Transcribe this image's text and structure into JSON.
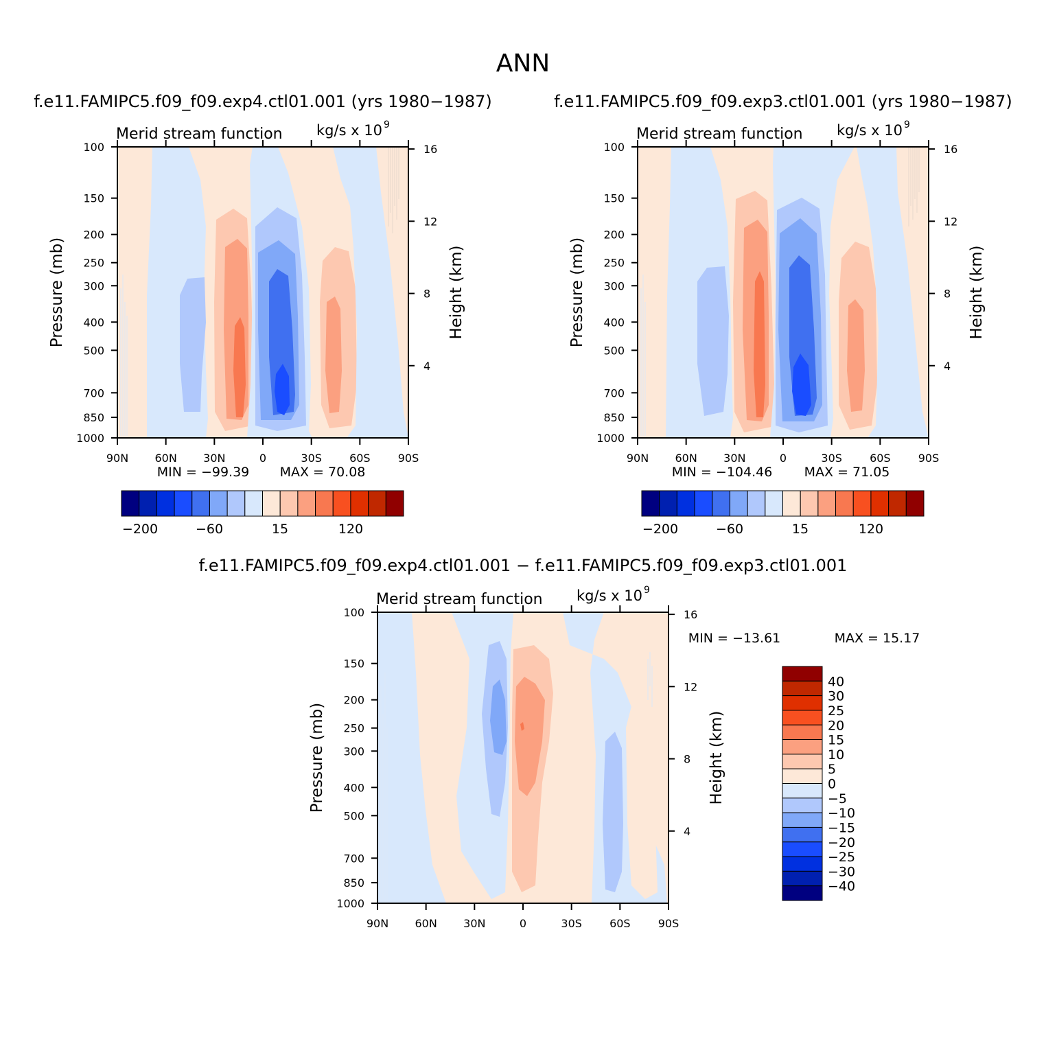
{
  "figure_title": "ANN",
  "panels": [
    {
      "case_title": "f.e11.FAMIPC5.f09_f09.exp4.ctl01.001 (yrs 1980−1987)",
      "variable": "Merid stream function",
      "units_base": "kg/s x 10",
      "units_exp": "9",
      "min_label": "MIN = −99.39",
      "max_label": "MAX = 70.08"
    },
    {
      "case_title": "f.e11.FAMIPC5.f09_f09.exp3.ctl01.001 (yrs 1980−1987)",
      "variable": "Merid stream function",
      "units_base": "kg/s x 10",
      "units_exp": "9",
      "min_label": "MIN = −104.46",
      "max_label": "MAX = 71.05"
    },
    {
      "case_title": "f.e11.FAMIPC5.f09_f09.exp4.ctl01.001 − f.e11.FAMIPC5.f09_f09.exp3.ctl01.001",
      "variable": "Merid stream function",
      "units_base": "kg/s x 10",
      "units_exp": "9",
      "min_label": "MIN = −13.61",
      "max_label": "MAX = 15.17"
    }
  ],
  "axes": {
    "ylabel": "Pressure (mb)",
    "ylabel_right": "Height (km)",
    "pressure_ticks": [
      "100",
      "150",
      "200",
      "250",
      "300",
      "400",
      "500",
      "700",
      "850",
      "1000"
    ],
    "height_ticks": [
      "16",
      "12",
      "8",
      "4"
    ],
    "lat_ticks": [
      "90N",
      "60N",
      "30N",
      "0",
      "30S",
      "60S",
      "90S"
    ]
  },
  "colorbar_top": {
    "colors": [
      "#000080",
      "#0020b0",
      "#0030e0",
      "#1a4dff",
      "#4070f0",
      "#80a8f8",
      "#b0c8fc",
      "#d8e8fc",
      "#fde8d8",
      "#fdc8b0",
      "#fba080",
      "#f87850",
      "#f85020",
      "#e03000",
      "#c02800",
      "#900000"
    ],
    "labels": [
      "−200",
      "−60",
      "15",
      "120"
    ]
  },
  "colorbar_diff": {
    "colors": [
      "#900000",
      "#c02800",
      "#e03000",
      "#f85020",
      "#f87850",
      "#fba080",
      "#fdc8b0",
      "#fde8d8",
      "#d8e8fc",
      "#b0c8fc",
      "#80a8f8",
      "#4070f0",
      "#1a4dff",
      "#0030e0",
      "#0020b0",
      "#000080"
    ],
    "labels": [
      "40",
      "30",
      "25",
      "20",
      "15",
      "10",
      "5",
      "0",
      "−5",
      "−10",
      "−15",
      "−20",
      "−25",
      "−30",
      "−40"
    ]
  },
  "chart_data": [
    {
      "type": "heatmap",
      "title": "Merid stream function",
      "xlabel": "",
      "ylabel": "Pressure (mb)",
      "ylabel_right": "Height (km)",
      "x_ticks": [
        "90N",
        "60N",
        "30N",
        "0",
        "30S",
        "60S",
        "90S"
      ],
      "y_ticks": [
        100,
        150,
        200,
        250,
        300,
        400,
        500,
        700,
        850,
        1000
      ],
      "ylim": [
        1000,
        100
      ],
      "min": -99.39,
      "max": 70.08,
      "extrema_approx": [
        {
          "sign": "positive",
          "lat": "15N",
          "pressure": 600
        },
        {
          "sign": "negative",
          "lat": "12S",
          "pressure": 650
        }
      ]
    },
    {
      "type": "heatmap",
      "title": "Merid stream function",
      "xlabel": "",
      "ylabel": "Pressure (mb)",
      "ylabel_right": "Height (km)",
      "x_ticks": [
        "90N",
        "60N",
        "30N",
        "0",
        "30S",
        "60S",
        "90S"
      ],
      "y_ticks": [
        100,
        150,
        200,
        250,
        300,
        400,
        500,
        700,
        850,
        1000
      ],
      "ylim": [
        1000,
        100
      ],
      "min": -104.46,
      "max": 71.05
    },
    {
      "type": "heatmap",
      "title": "Merid stream function",
      "xlabel": "",
      "ylabel": "Pressure (mb)",
      "ylabel_right": "Height (km)",
      "x_ticks": [
        "90N",
        "60N",
        "30N",
        "0",
        "30S",
        "60S",
        "90S"
      ],
      "y_ticks": [
        100,
        150,
        200,
        250,
        300,
        400,
        500,
        700,
        850,
        1000
      ],
      "ylim": [
        1000,
        100
      ],
      "min": -13.61,
      "max": 15.17,
      "contour_levels": [
        -40,
        -30,
        -25,
        -20,
        -15,
        -10,
        -5,
        0,
        5,
        10,
        15,
        20,
        25,
        30,
        40
      ]
    }
  ]
}
